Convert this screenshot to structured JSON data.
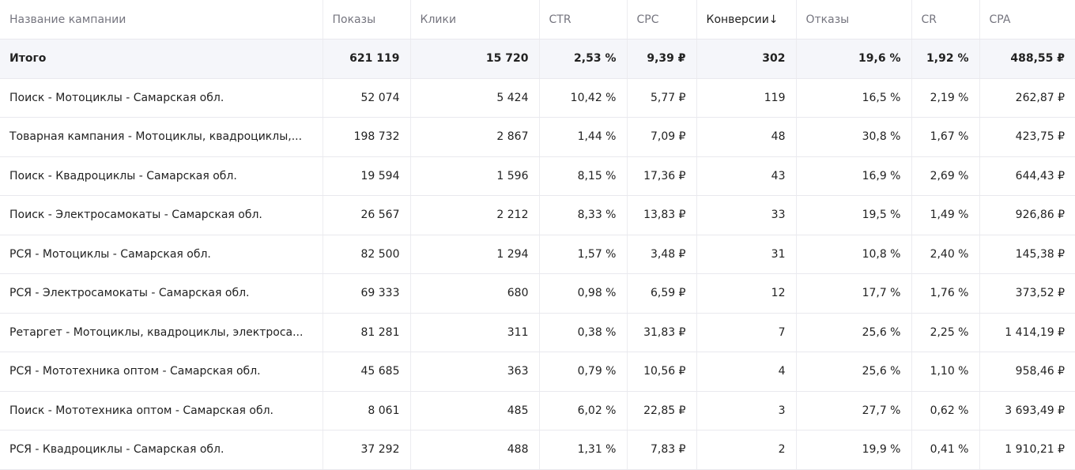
{
  "table": {
    "headers": [
      "Название кампании",
      "Показы",
      "Клики",
      "CTR",
      "CPC",
      "Конверсии↓",
      "Отказы",
      "CR",
      "CPA"
    ],
    "total": [
      "Итого",
      "621 119",
      "15 720",
      "2,53 %",
      "9,39 ₽",
      "302",
      "19,6 %",
      "1,92 %",
      "488,55 ₽"
    ],
    "rows": [
      [
        "Поиск - Мотоциклы - Самарская обл.",
        "52 074",
        "5 424",
        "10,42 %",
        "5,77 ₽",
        "119",
        "16,5 %",
        "2,19 %",
        "262,87 ₽"
      ],
      [
        "Товарная кампания - Мотоциклы, квадроциклы,...",
        "198 732",
        "2 867",
        "1,44 %",
        "7,09 ₽",
        "48",
        "30,8 %",
        "1,67 %",
        "423,75 ₽"
      ],
      [
        "Поиск - Квадроциклы - Самарская обл.",
        "19 594",
        "1 596",
        "8,15 %",
        "17,36 ₽",
        "43",
        "16,9 %",
        "2,69 %",
        "644,43 ₽"
      ],
      [
        "Поиск - Электросамокаты - Самарская обл.",
        "26 567",
        "2 212",
        "8,33 %",
        "13,83 ₽",
        "33",
        "19,5 %",
        "1,49 %",
        "926,86 ₽"
      ],
      [
        "РСЯ - Мотоциклы - Самарская обл.",
        "82 500",
        "1 294",
        "1,57 %",
        "3,48 ₽",
        "31",
        "10,8 %",
        "2,40 %",
        "145,38 ₽"
      ],
      [
        "РСЯ - Электросамокаты - Самарская обл.",
        "69 333",
        "680",
        "0,98 %",
        "6,59 ₽",
        "12",
        "17,7 %",
        "1,76 %",
        "373,52 ₽"
      ],
      [
        "Ретаргет - Мотоциклы, квадроциклы, электроса...",
        "81 281",
        "311",
        "0,38 %",
        "31,83 ₽",
        "7",
        "25,6 %",
        "2,25 %",
        "1 414,19 ₽"
      ],
      [
        "РСЯ - Мототехника оптом - Самарская обл.",
        "45 685",
        "363",
        "0,79 %",
        "10,56 ₽",
        "4",
        "25,6 %",
        "1,10 %",
        "958,46 ₽"
      ],
      [
        "Поиск - Мототехника оптом - Самарская обл.",
        "8 061",
        "485",
        "6,02 %",
        "22,85 ₽",
        "3",
        "27,7 %",
        "0,62 %",
        "3 693,49 ₽"
      ],
      [
        "РСЯ - Квадроциклы - Самарская обл.",
        "37 292",
        "488",
        "1,31 %",
        "7,83 ₽",
        "2",
        "19,9 %",
        "0,41 %",
        "1 910,21 ₽"
      ]
    ]
  }
}
